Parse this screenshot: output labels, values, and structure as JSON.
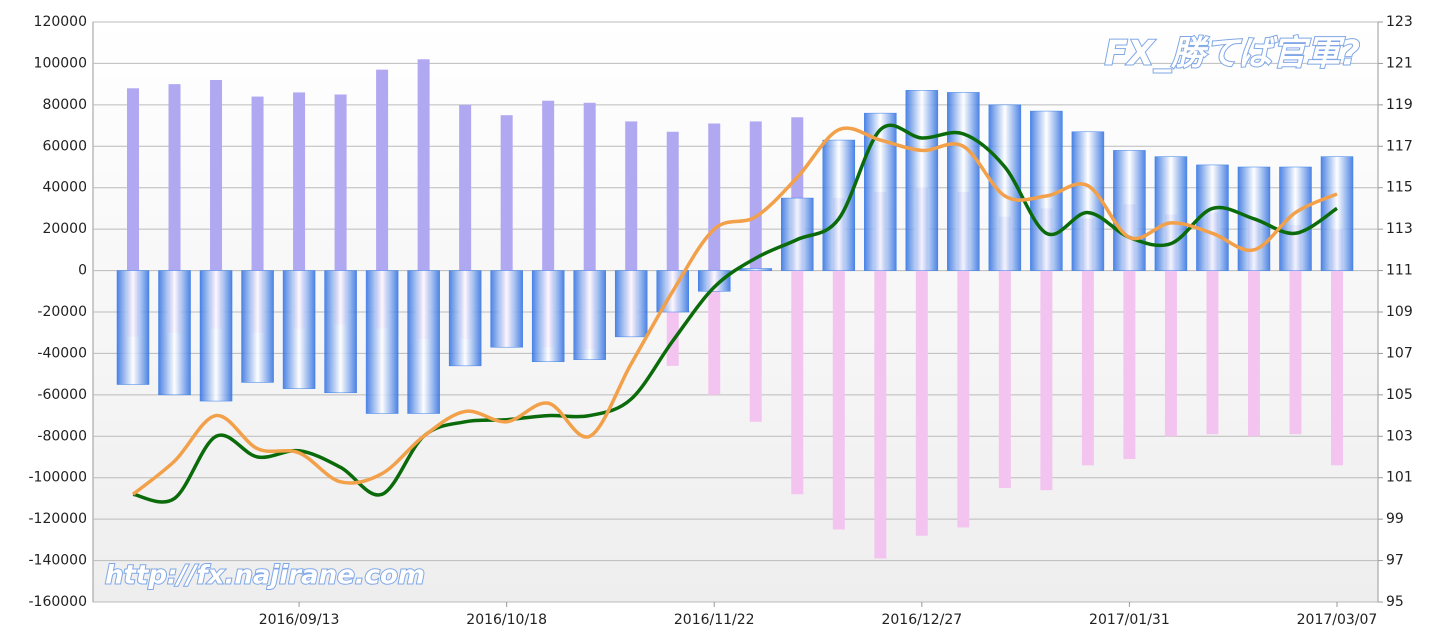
{
  "chart_data": {
    "type": "bar_line",
    "watermarks": [
      "FX_勝てば官軍?",
      "http://fx.najirane.com"
    ],
    "categories": [
      null,
      null,
      null,
      null,
      "2016/09/13",
      null,
      null,
      null,
      null,
      "2016/10/18",
      null,
      null,
      null,
      null,
      "2016/11/22",
      null,
      null,
      null,
      null,
      "2016/12/27",
      null,
      null,
      null,
      null,
      "2017/01/31",
      null,
      null,
      null,
      null,
      "2017/03/07"
    ],
    "series": [
      {
        "type": "bar",
        "color": "#b0a8f0",
        "values": [
          88000,
          90000,
          92000,
          84000,
          86000,
          85000,
          97000,
          102000,
          80000,
          75000,
          82000,
          81000,
          72000,
          67000,
          71000,
          72000,
          74000,
          35000,
          38000,
          40000,
          38000,
          26000,
          30000,
          25000,
          32000,
          27000,
          28000,
          25000,
          22000,
          20000
        ]
      },
      {
        "type": "bar",
        "color": "#f4c4f0",
        "values": [
          -32000,
          -30000,
          -28000,
          -30000,
          -28000,
          -26000,
          -28000,
          -33000,
          -33000,
          -37000,
          -37000,
          -38000,
          -32000,
          -46000,
          -60000,
          -73000,
          -108000,
          -125000,
          -139000,
          -128000,
          -124000,
          -105000,
          -106000,
          -94000,
          -91000,
          -80000,
          -79000,
          -80000,
          -79000,
          -94000
        ]
      },
      {
        "type": "bar",
        "color": "#3a7ee8",
        "values": [
          -55000,
          -60000,
          -63000,
          -54000,
          -57000,
          -59000,
          -69000,
          -69000,
          -46000,
          -37000,
          -44000,
          -43000,
          -32000,
          -20000,
          -10000,
          1000,
          35000,
          63000,
          76000,
          87000,
          86000,
          80000,
          77000,
          67000,
          58000,
          55000,
          51000,
          50000,
          50000,
          55000
        ]
      },
      {
        "type": "line",
        "axis": "y2",
        "color": "#0b6b0b",
        "values": [
          100.2,
          100.0,
          103.0,
          102.0,
          102.3,
          101.5,
          100.2,
          103.0,
          103.7,
          103.8,
          104.0,
          104.0,
          104.8,
          107.6,
          110.2,
          111.6,
          112.5,
          113.5,
          117.8,
          117.4,
          117.6,
          116.0,
          112.8,
          113.8,
          112.6,
          112.3,
          114.0,
          113.5,
          112.8,
          114.0
        ]
      },
      {
        "type": "line",
        "axis": "y2",
        "color": "#f2a04a",
        "values": [
          100.2,
          101.8,
          104.0,
          102.4,
          102.2,
          100.8,
          101.2,
          103.0,
          104.2,
          103.7,
          104.6,
          103.0,
          106.5,
          110.0,
          113.0,
          113.6,
          115.5,
          117.8,
          117.3,
          116.8,
          117.0,
          114.6,
          114.6,
          115.1,
          112.6,
          113.3,
          112.8,
          112.0,
          113.8,
          114.7
        ]
      }
    ],
    "ylim": [
      -160000,
      120000
    ],
    "yticks": [
      -160000,
      -140000,
      -120000,
      -100000,
      -80000,
      -60000,
      -40000,
      -20000,
      0,
      20000,
      40000,
      60000,
      80000,
      100000,
      120000
    ],
    "y2lim": [
      95,
      123
    ],
    "y2ticks": [
      95,
      97,
      99,
      101,
      103,
      105,
      107,
      109,
      111,
      113,
      115,
      117,
      119,
      121,
      123
    ],
    "grid": true
  }
}
